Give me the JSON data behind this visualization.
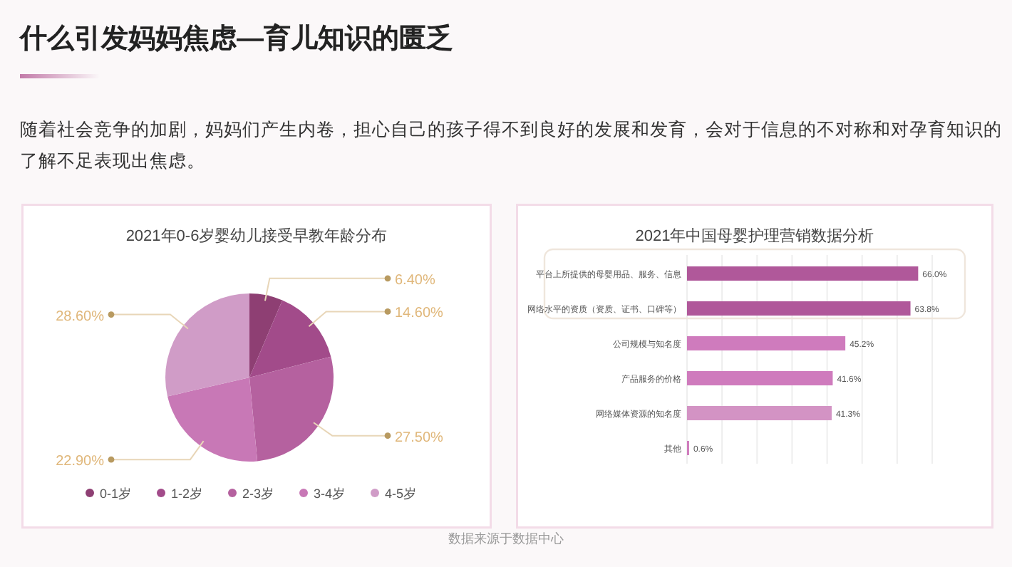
{
  "chart_data": [
    {
      "type": "pie",
      "title": "2021年0-6岁婴幼儿接受早教年龄分布",
      "categories": [
        "0-1岁",
        "1-2岁",
        "2-3岁",
        "3-4岁",
        "4-5岁"
      ],
      "values": [
        6.4,
        14.6,
        27.5,
        22.9,
        28.6
      ],
      "value_labels": [
        "6.40%",
        "14.60%",
        "27.50%",
        "22.90%",
        "28.60%"
      ],
      "colors": [
        "#8e3f73",
        "#a24b8a",
        "#b5619f",
        "#c878b6",
        "#d09cc7"
      ],
      "legend": "bottom",
      "annotations": [
        "什么引发妈妈焦虑—育儿知识的匮乏",
        "随着社会竞争的加剧，妈妈们产生内卷，担心自己的孩子得不到良好的发展和发育，会对于信息的不对称和对孕育知识的了解不足表现出焦虑。"
      ]
    },
    {
      "type": "bar",
      "orientation": "horizontal",
      "title": "2021年中国母婴护理营销数据分析",
      "categories": [
        "平台上所提供的母婴用品、服务、信息",
        "网络水平的资质（资质、证书、口碑等）",
        "公司规模与知名度",
        "产品服务的价格",
        "网络媒体资源的知名度",
        "其他"
      ],
      "values": [
        66.0,
        63.8,
        45.2,
        41.6,
        41.3,
        0.6
      ],
      "value_labels": [
        "66.0%",
        "63.8%",
        "45.2%",
        "41.6%",
        "41.3%",
        "0.6%"
      ],
      "colors": [
        "#b0589a",
        "#b0589a",
        "#cf7bbd",
        "#cf7bbd",
        "#d393c4",
        "#cf7bbd"
      ],
      "xlim": [
        0,
        70
      ],
      "xticks": [
        {
          "value": 0,
          "label": null
        },
        {
          "value": 10,
          "label": null
        },
        {
          "value": 20,
          "label": null
        },
        {
          "value": 30,
          "label": null
        },
        {
          "value": 40,
          "label": null
        },
        {
          "value": 50,
          "label": null
        },
        {
          "value": 60,
          "label": null
        },
        {
          "value": 70,
          "label": null
        }
      ],
      "grid": "x",
      "annotations": [
        "数据来源于数据中心"
      ]
    }
  ]
}
